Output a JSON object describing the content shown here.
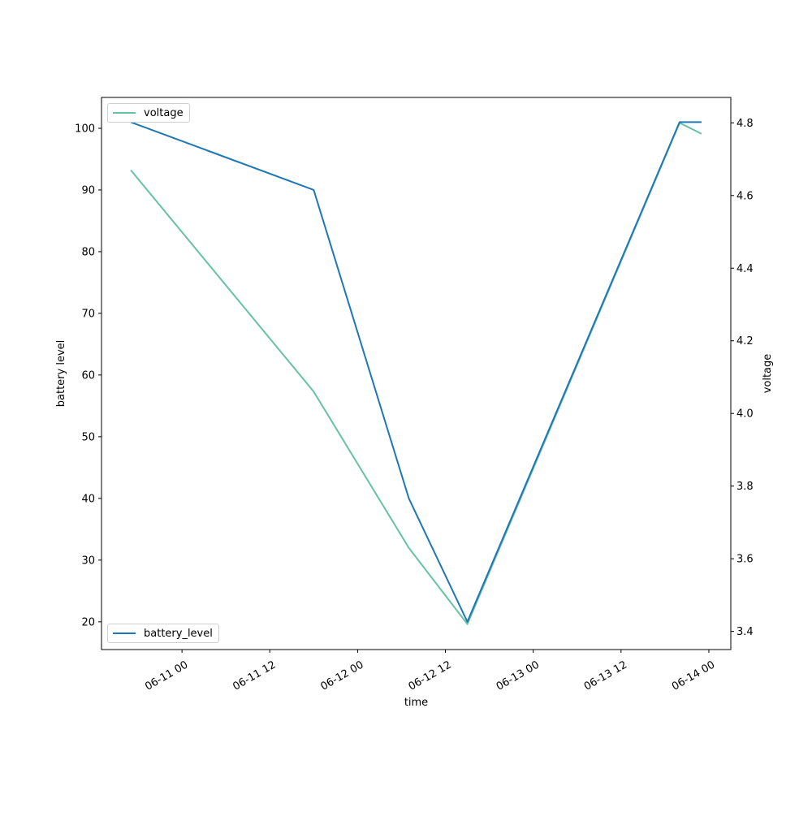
{
  "chart_data": {
    "type": "line",
    "xlabel": "time",
    "ylabel_left": "battery level",
    "ylabel_right": "voltage",
    "x_tick_labels": [
      "06-11 00",
      "06-11 12",
      "06-12 00",
      "06-12 12",
      "06-13 00",
      "06-13 12",
      "06-14 00"
    ],
    "x_ticks": [
      "2023-06-11T00:00",
      "2023-06-11T12:00",
      "2023-06-12T00:00",
      "2023-06-12T12:00",
      "2023-06-13T00:00",
      "2023-06-13T12:00",
      "2023-06-14T00:00"
    ],
    "xlim": [
      "2023-06-10T13:00",
      "2023-06-14T03:00"
    ],
    "ylim_left": [
      15.5,
      105
    ],
    "ylim_right": [
      3.35,
      4.87
    ],
    "y_ticks_left": [
      20,
      30,
      40,
      50,
      60,
      70,
      80,
      90,
      100
    ],
    "y_tick_labels_left": [
      "20",
      "30",
      "40",
      "50",
      "60",
      "70",
      "80",
      "90",
      "100"
    ],
    "y_ticks_right": [
      3.4,
      3.6,
      3.8,
      4.0,
      4.2,
      4.4,
      4.6,
      4.8
    ],
    "y_tick_labels_right": [
      "3.4",
      "3.6",
      "3.8",
      "4.0",
      "4.2",
      "4.4",
      "4.6",
      "4.8"
    ],
    "grid": false,
    "series": [
      {
        "name": "battery_level",
        "axis": "left",
        "color": "#1f77b4",
        "legend_position": "lower-left",
        "x": [
          "2023-06-10T17:00",
          "2023-06-11T18:00",
          "2023-06-12T07:00",
          "2023-06-12T15:00",
          "2023-06-13T20:00",
          "2023-06-13T23:00"
        ],
        "y": [
          101,
          90,
          40,
          20,
          101,
          101
        ]
      },
      {
        "name": "voltage",
        "axis": "right",
        "color": "#66c2a5",
        "legend_position": "upper-left",
        "x": [
          "2023-06-10T17:00",
          "2023-06-11T18:00",
          "2023-06-12T07:00",
          "2023-06-12T15:00",
          "2023-06-13T20:00",
          "2023-06-13T23:00"
        ],
        "y": [
          4.67,
          4.06,
          3.63,
          3.42,
          4.8,
          4.77
        ]
      }
    ]
  }
}
